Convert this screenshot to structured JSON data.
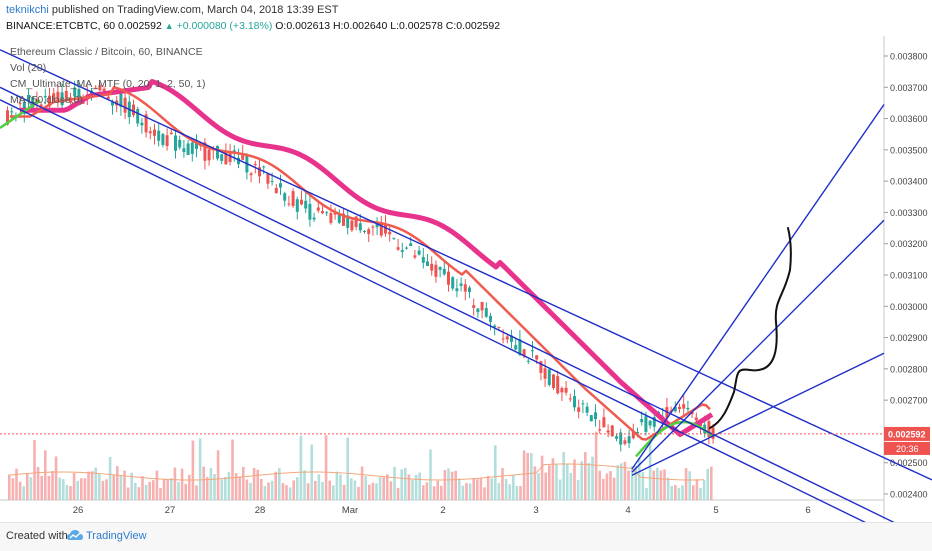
{
  "header": {
    "author": "teknikchi",
    "published_text": "published on TradingView.com, March 04, 2018 13:39 EST",
    "symbol_line": "BINANCE:ETCBTC, 60 0.002592",
    "change_arrow": "▲",
    "change_text": "+0.000080 (+3.18%)",
    "ohlc_text": "O:0.002613 H:0.002640 L:0.002578 C:0.002592"
  },
  "legend": {
    "title": "Ethereum Classic / Bitcoin, 60, BINANCE",
    "vol": "Vol (20)",
    "cm": "CM_Ultimate_MA_MTF (0, 20, 1, 2, 50, 1)",
    "ma": "MA (50,close,0)"
  },
  "footer": {
    "created": "Created with",
    "brand": "TradingView"
  },
  "chart_data": {
    "type": "candlestick",
    "y_axis_labels": [
      "0.003800",
      "0.003700",
      "0.003600",
      "0.003500",
      "0.003400",
      "0.003300",
      "0.003200",
      "0.003100",
      "0.003000",
      "0.002900",
      "0.002800",
      "0.002700",
      "0.002600",
      "0.002500",
      "0.002400"
    ],
    "y_ticks": [
      0.0038,
      0.0037,
      0.0036,
      0.0035,
      0.0034,
      0.0033,
      0.0032,
      0.0031,
      0.003,
      0.0029,
      0.0028,
      0.0027,
      0.0026,
      0.0025,
      0.0024
    ],
    "ylim": [
      0.00234,
      0.00388
    ],
    "x_labels": [
      "26",
      "27",
      "28",
      "Mar",
      "2",
      "3",
      "4",
      "5",
      "6"
    ],
    "price_label": "0.002592",
    "countdown_label": "20:36",
    "last_price": 0.002592,
    "colors": {
      "up": "#26a69a",
      "down": "#ef5350",
      "ma_red": "#f05b4f",
      "ma_pink": "#e8338c",
      "ma_green": "#4cd23c",
      "channel": "#1f2fc9",
      "drawing": "#111111",
      "vol_up": "#b2dfdb",
      "vol_down": "#f7b0b0"
    },
    "trend_lines_price_space": [
      {
        "name": "channel-upper",
        "x": [
          0,
          932
        ],
        "y": [
          0.00382,
          0.002445
        ]
      },
      {
        "name": "channel-mid",
        "x": [
          0,
          932
        ],
        "y": [
          0.00366,
          0.002205
        ]
      },
      {
        "name": "channel-lower",
        "x": [
          0,
          932
        ],
        "y": [
          0.0037,
          0.00225
        ]
      },
      {
        "name": "fan-steep",
        "x": [
          632,
          884
        ],
        "y": [
          0.00248,
          0.003645
        ]
      },
      {
        "name": "fan-mid",
        "x": [
          632,
          884
        ],
        "y": [
          0.00247,
          0.003275
        ]
      },
      {
        "name": "fan-low",
        "x": [
          632,
          884
        ],
        "y": [
          0.00246,
          0.00285
        ]
      }
    ]
  }
}
